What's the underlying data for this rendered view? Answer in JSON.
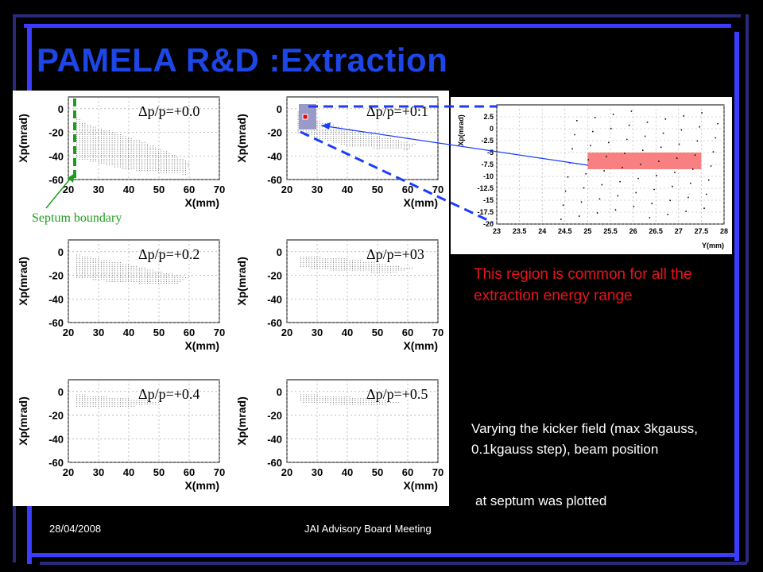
{
  "slide": {
    "title": "PAMELA R&D :Extraction",
    "footer_date": "28/04/2008",
    "footer_meeting": "JAI Advisory Board Meeting",
    "common_region_text": "This region is common  for all the extraction energy range",
    "method_text": "Varying the kicker field (max 3kgauss,  0.1kgauss step), beam position",
    "method_text_cont": "at septum was plotted",
    "septum_label": "Septum boundary",
    "colors": {
      "title": "#1c46e6",
      "frame_blue": "#3c3cff",
      "highlight_text": "#e8141e",
      "septum": "#1e9e1e"
    }
  },
  "chart_data": [
    {
      "type": "scatter",
      "label": "Δp/p=+0.0",
      "xlabel": "X(mm)",
      "ylabel": "Xp(mrad)",
      "xlim": [
        20,
        70
      ],
      "ylim": [
        -60,
        10
      ],
      "xticks": [
        20,
        30,
        40,
        50,
        60,
        70
      ],
      "yticks": [
        0,
        -20,
        -40,
        -60
      ],
      "region": [
        [
          22,
          -5
        ],
        [
          25,
          -12
        ],
        [
          45,
          -28
        ],
        [
          60,
          -45
        ],
        [
          59,
          -56
        ],
        [
          40,
          -52
        ],
        [
          22,
          -42
        ]
      ]
    },
    {
      "type": "scatter",
      "label": "Δp/p=+0:1",
      "xlabel": "X(mm)",
      "ylabel": "Xp(mrad)",
      "xlim": [
        20,
        70
      ],
      "ylim": [
        -60,
        10
      ],
      "xticks": [
        20,
        30,
        40,
        50,
        60,
        70
      ],
      "yticks": [
        0,
        -20,
        -40,
        -60
      ],
      "region": [
        [
          23,
          -2
        ],
        [
          30,
          -10
        ],
        [
          45,
          -20
        ],
        [
          63,
          -30
        ],
        [
          60,
          -35
        ],
        [
          40,
          -32
        ],
        [
          23,
          -20
        ]
      ]
    },
    {
      "type": "scatter",
      "label": "Δp/p=+0.2",
      "xlabel": "X(mm)",
      "ylabel": "Xp(mrad)",
      "xlim": [
        20,
        70
      ],
      "ylim": [
        -60,
        10
      ],
      "xticks": [
        20,
        30,
        40,
        50,
        60,
        70
      ],
      "yticks": [
        0,
        -20,
        -40,
        -60
      ],
      "region": [
        [
          22,
          -2
        ],
        [
          35,
          -8
        ],
        [
          60,
          -22
        ],
        [
          55,
          -28
        ],
        [
          35,
          -26
        ],
        [
          22,
          -22
        ]
      ]
    },
    {
      "type": "scatter",
      "label": "Δp/p=+03",
      "xlabel": "X(mm)",
      "ylabel": "Xp(mrad)",
      "xlim": [
        20,
        70
      ],
      "ylim": [
        -60,
        10
      ],
      "xticks": [
        20,
        30,
        40,
        50,
        60,
        70
      ],
      "yticks": [
        0,
        -20,
        -40,
        -60
      ],
      "region": [
        [
          24,
          -3
        ],
        [
          40,
          -6
        ],
        [
          62,
          -14
        ],
        [
          55,
          -18
        ],
        [
          35,
          -16
        ],
        [
          24,
          -13
        ]
      ]
    },
    {
      "type": "scatter",
      "label": "Δp/p=+0.4",
      "xlabel": "X(mm)",
      "ylabel": "Xp(mrad)",
      "xlim": [
        20,
        70
      ],
      "ylim": [
        -60,
        10
      ],
      "xticks": [
        20,
        30,
        40,
        50,
        60,
        70
      ],
      "yticks": [
        0,
        -20,
        -40,
        -60
      ],
      "region": [
        [
          22,
          -2
        ],
        [
          45,
          -7
        ],
        [
          52,
          -10
        ],
        [
          40,
          -13
        ],
        [
          22,
          -14
        ]
      ]
    },
    {
      "type": "scatter",
      "label": "Δp/p=+0.5",
      "xlabel": "X(mm)",
      "ylabel": "Xp(mrad)",
      "xlim": [
        20,
        70
      ],
      "ylim": [
        -60,
        10
      ],
      "xticks": [
        20,
        30,
        40,
        50,
        60,
        70
      ],
      "yticks": [
        0,
        -20,
        -40,
        -60
      ],
      "region": [
        [
          24,
          -2
        ],
        [
          40,
          -4
        ],
        [
          58,
          -9
        ],
        [
          50,
          -12
        ],
        [
          35,
          -11
        ],
        [
          24,
          -9
        ]
      ]
    },
    {
      "type": "scatter",
      "label": "",
      "xlabel": "Y(mm)",
      "ylabel": "Xp(mrad)",
      "xlim": [
        23,
        28
      ],
      "ylim": [
        -20,
        5
      ],
      "xticks": [
        23,
        23.5,
        24,
        24.5,
        25,
        25.5,
        26,
        26.5,
        27,
        27.5,
        28
      ],
      "yticks": [
        2.5,
        0,
        -2.5,
        -5,
        -7.5,
        -10,
        -12.5,
        -15,
        -17.5,
        -20
      ],
      "highlight": {
        "x": [
          25,
          27.5
        ],
        "y": [
          -5,
          -8.5
        ],
        "color": "#f88080"
      }
    }
  ]
}
